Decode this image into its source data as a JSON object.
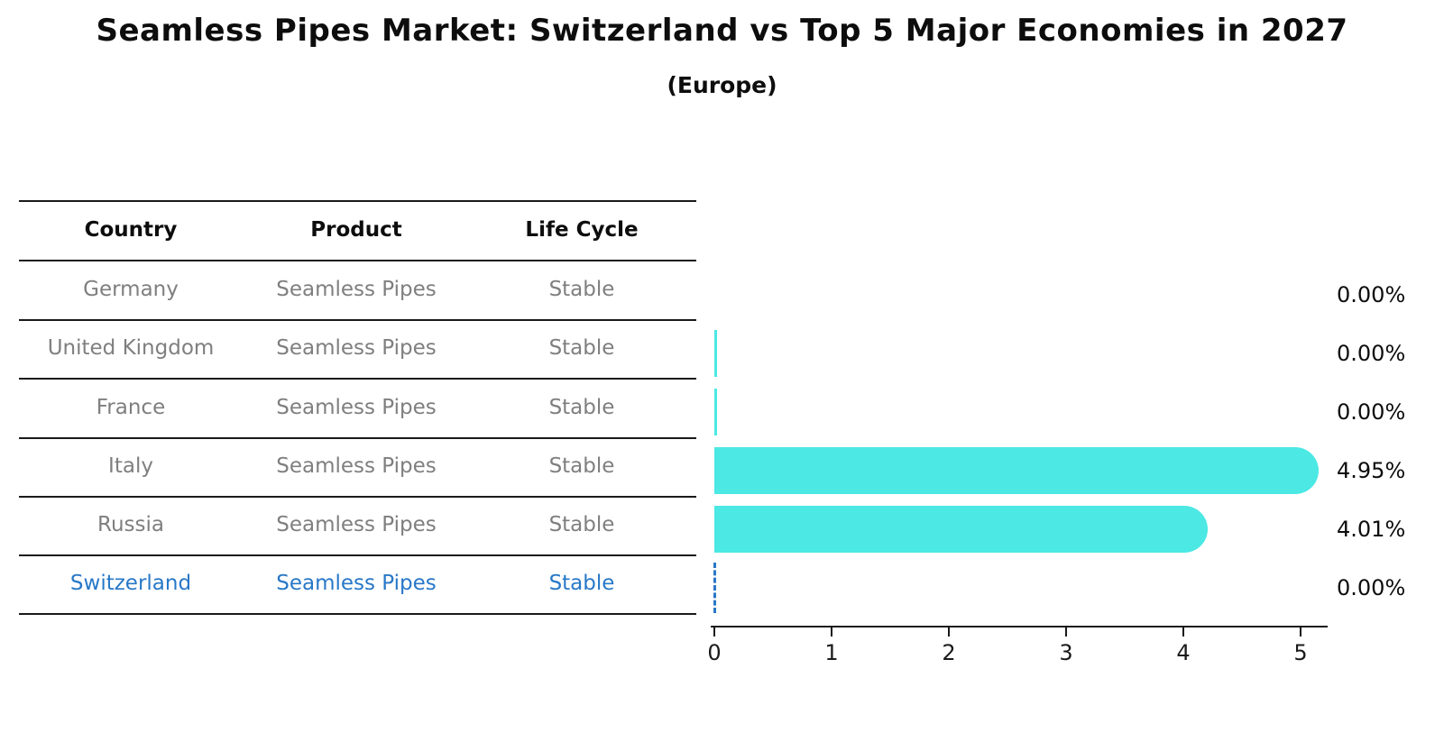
{
  "title": "Seamless Pipes Market: Switzerland vs Top 5 Major Economies in 2027",
  "subtitle": "(Europe)",
  "table": {
    "columns": [
      "Country",
      "Product",
      "Life Cycle"
    ],
    "rows": [
      {
        "country": "Germany",
        "product": "Seamless Pipes",
        "life_cycle": "Stable",
        "highlighted": false
      },
      {
        "country": "United Kingdom",
        "product": "Seamless Pipes",
        "life_cycle": "Stable",
        "highlighted": false
      },
      {
        "country": "France",
        "product": "Seamless Pipes",
        "life_cycle": "Stable",
        "highlighted": false
      },
      {
        "country": "Italy",
        "product": "Seamless Pipes",
        "life_cycle": "Stable",
        "highlighted": false
      },
      {
        "country": "Russia",
        "product": "Seamless Pipes",
        "life_cycle": "Stable",
        "highlighted": false
      },
      {
        "country": "Switzerland",
        "product": "Seamless Pipes",
        "life_cycle": "Stable",
        "highlighted": true
      }
    ]
  },
  "chart_data": {
    "type": "bar",
    "orientation": "horizontal",
    "title": "Seamless Pipes Market: Switzerland vs Top 5 Major Economies in 2027",
    "subtitle": "(Europe)",
    "categories": [
      "Germany",
      "United Kingdom",
      "France",
      "Italy",
      "Russia",
      "Switzerland"
    ],
    "values": [
      0.0,
      0.0,
      0.0,
      4.95,
      4.01,
      0.0
    ],
    "value_labels": [
      "0.00%",
      "0.00%",
      "0.00%",
      "4.95%",
      "4.01%",
      "0.00%"
    ],
    "xlim": [
      0,
      5
    ],
    "x_ticks": [
      "0",
      "1",
      "2",
      "3",
      "4",
      "5"
    ],
    "grid": false,
    "legend": false,
    "bar_color": "#4be8e4",
    "highlight_color": "#2878c8",
    "label_color": "#0d0d0d"
  },
  "colors": {
    "background": "#ffffff",
    "table_line": "#1a1a1a",
    "row_text": "#7f7f7f",
    "header_text": "#0d0d0d",
    "switzerland_text": "#2878c8",
    "bar": "#4be8e4"
  }
}
